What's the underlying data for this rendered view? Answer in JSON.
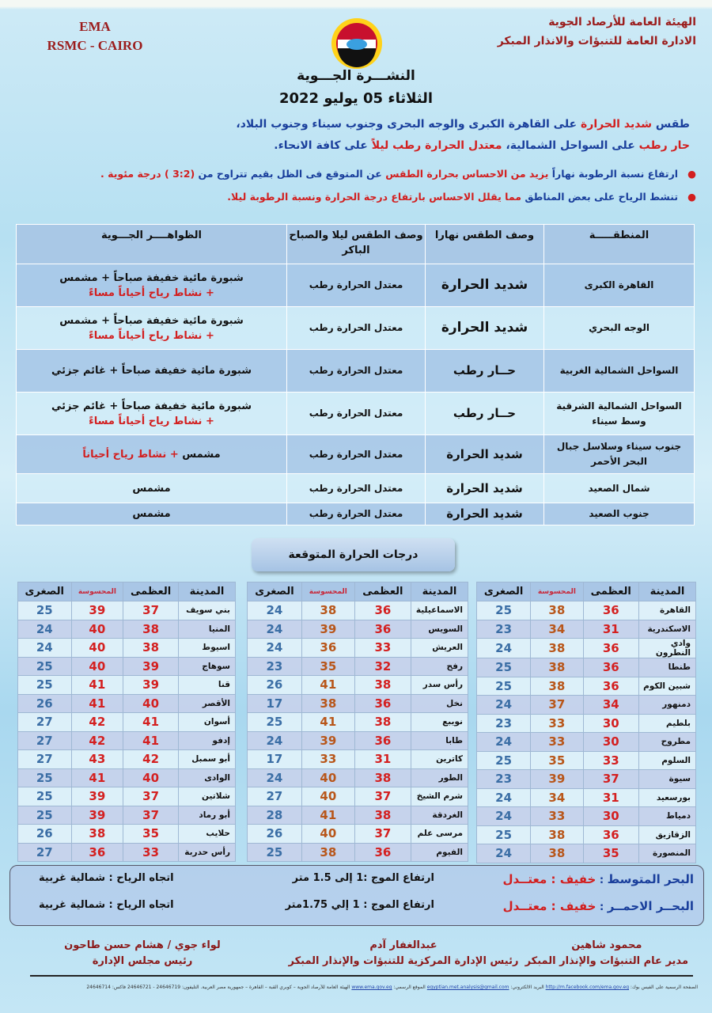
{
  "header": {
    "org_en_1": "EMA",
    "org_en_2": "RSMC - CAIRO",
    "org_ar_1": "الهيئة العامة للأرصاد الجوية",
    "org_ar_2": "الادارة العامة للتنبؤات والانذار المبكر",
    "logo_text": "EMA",
    "title": "النشـــرة الجـــوية",
    "date": "الثلاثاء 05 يوليو 2022"
  },
  "colors": {
    "red": "#d21f1f",
    "blue": "#1a3f9c",
    "maroon": "#8b1a1a",
    "max_temp": "#d42020",
    "felt_temp": "#b8561a",
    "min_temp": "#3b6ea5"
  },
  "summary": [
    [
      {
        "t": "طقس ",
        "c": "blue"
      },
      {
        "t": "شديد الحرارة",
        "c": "red"
      },
      {
        "t": " على القاهرة الكبرى والوجه البحرى وجنوب سيناء وجنوب البلاد،",
        "c": "blue"
      }
    ],
    [
      {
        "t": "حار رطب",
        "c": "red"
      },
      {
        "t": " على السواحل الشمالية، ",
        "c": "blue"
      },
      {
        "t": "معتدل الحرارة رطب ليلاً",
        "c": "red"
      },
      {
        "t": " على كافة الانحاء.",
        "c": "blue"
      }
    ]
  ],
  "bullets": [
    [
      {
        "t": "ارتفاع نسبة الرطوبة نهاراً ",
        "c": "blue"
      },
      {
        "t": "يزيد من الاحساس بحرارة الطقس",
        "c": "red"
      },
      {
        "t": " عن المتوقع فى الظل بقيم تتراوح من ",
        "c": "blue"
      },
      {
        "t": "(3:2 ) درجة مئوية .",
        "c": "red"
      }
    ],
    [
      {
        "t": "تنشط الرياح على بعض المناطق ",
        "c": "blue"
      },
      {
        "t": "مما يقلل الاحساس بارتفاع درجة الحرارة ونسبة الرطوبة ليلا.",
        "c": "red"
      }
    ]
  ],
  "regions": {
    "headers": [
      "المنطقـــــة",
      "وصف الطقس نهارا",
      "وصف الطقس ليلا والصباح الباكر",
      "الظواهــــر الجـــوية"
    ],
    "rows": [
      {
        "region": "القاهرة الكبرى",
        "day": "شديد الحرارة",
        "night": "معتدل الحرارة رطب",
        "phen": [
          {
            "t": "شبورة مائية خفيفة صباحاً + مشمس",
            "c": "blk"
          },
          {
            "t": "+ نشاط رياح أحياناً مساءً",
            "c": "red",
            "br": true
          }
        ]
      },
      {
        "region": "الوجه البحري",
        "day": "شديد الحرارة",
        "night": "معتدل الحرارة رطب",
        "phen": [
          {
            "t": "شبورة مائية خفيفة صباحاً + مشمس",
            "c": "blk"
          },
          {
            "t": "+ نشاط رياح أحياناً مساءً",
            "c": "red",
            "br": true
          }
        ]
      },
      {
        "region": "السواحل الشمالية الغربية",
        "day": "حــار رطب",
        "night": "معتدل الحرارة رطب",
        "phen": [
          {
            "t": "شبورة مائية خفيفة صباحاً + غائم جزئي",
            "c": "blk"
          }
        ]
      },
      {
        "region": "السواحل الشمالية الشرقية وسط سيناء",
        "day": "حــار رطب",
        "night": "معتدل الحرارة رطب",
        "phen": [
          {
            "t": "شبورة مائية خفيفة صباحاً + غائم جزئي",
            "c": "blk"
          },
          {
            "t": "+ نشاط رياح أحياناً مساءً",
            "c": "red",
            "br": true
          }
        ]
      },
      {
        "region": "جنوب سيناء وسلاسل جبال البحر الأحمر",
        "day": "شديد الحرارة",
        "night": "معتدل الحرارة رطب",
        "phen": [
          {
            "t": "مشمس ",
            "c": "blk"
          },
          {
            "t": "+ نشاط رياح أحياناً",
            "c": "red"
          }
        ]
      },
      {
        "region": "شمال الصعيد",
        "day": "شديد الحرارة",
        "night": "معتدل الحرارة رطب",
        "phen": [
          {
            "t": "مشمس",
            "c": "blk"
          }
        ]
      },
      {
        "region": "جنوب الصعيد",
        "day": "شديد الحرارة",
        "night": "معتدل الحرارة رطب",
        "phen": [
          {
            "t": "مشمس",
            "c": "blk"
          }
        ]
      }
    ]
  },
  "temps": {
    "title": "درجات الحرارة المتوقعة",
    "headers": [
      "المدينة",
      "العظمى",
      "المحسوسة",
      "الصغرى"
    ],
    "tables": [
      [
        [
          "القاهرة",
          36,
          38,
          25
        ],
        [
          "الاسكندرية",
          31,
          34,
          23
        ],
        [
          "وادي النطرون",
          36,
          38,
          24
        ],
        [
          "طنطا",
          36,
          38,
          25
        ],
        [
          "شبين الكوم",
          36,
          38,
          25
        ],
        [
          "دمنهور",
          34,
          37,
          24
        ],
        [
          "بلطيم",
          30,
          33,
          23
        ],
        [
          "مطروح",
          30,
          33,
          24
        ],
        [
          "السلوم",
          33,
          35,
          25
        ],
        [
          "سيوة",
          37,
          39,
          23
        ],
        [
          "بورسعيد",
          31,
          34,
          24
        ],
        [
          "دمياط",
          30,
          33,
          24
        ],
        [
          "الزقازيق",
          36,
          38,
          25
        ],
        [
          "المنصورة",
          35,
          38,
          24
        ]
      ],
      [
        [
          "الاسماعيلية",
          36,
          38,
          24
        ],
        [
          "السويس",
          36,
          39,
          24
        ],
        [
          "العريش",
          33,
          36,
          24
        ],
        [
          "رفح",
          32,
          35,
          23
        ],
        [
          "رأس سدر",
          38,
          41,
          26
        ],
        [
          "نخل",
          36,
          38,
          17
        ],
        [
          "نويبع",
          38,
          41,
          25
        ],
        [
          "طابا",
          36,
          39,
          24
        ],
        [
          "كاترين",
          31,
          33,
          17
        ],
        [
          "الطور",
          38,
          40,
          24
        ],
        [
          "شرم الشيخ",
          37,
          40,
          27
        ],
        [
          "الغردقة",
          38,
          41,
          28
        ],
        [
          "مرسى علم",
          37,
          40,
          26
        ],
        [
          "الفيوم",
          36,
          38,
          25
        ]
      ],
      [
        [
          "بني سويف",
          37,
          39,
          25
        ],
        [
          "المنيا",
          38,
          40,
          24
        ],
        [
          "اسيوط",
          38,
          40,
          24
        ],
        [
          "سوهاج",
          39,
          40,
          25
        ],
        [
          "قنا",
          39,
          41,
          25
        ],
        [
          "الأقصر",
          40,
          41,
          26
        ],
        [
          "أسوان",
          41,
          42,
          27
        ],
        [
          "إدفو",
          41,
          42,
          27
        ],
        [
          "أبو سمبل",
          42,
          43,
          27
        ],
        [
          "الوادى",
          40,
          41,
          25
        ],
        [
          "شلاتين",
          37,
          39,
          25
        ],
        [
          "أبو رماد",
          37,
          39,
          25
        ],
        [
          "حلايب",
          35,
          38,
          26
        ],
        [
          "رأس حدربة",
          33,
          36,
          27
        ]
      ]
    ]
  },
  "sea": [
    {
      "name": "البحر المتوسط",
      "sep": " : ",
      "state1": "خفيف",
      "state2": " : معتــدل",
      "wave": "ارتفاع الموج :1 إلى 1.5 متر",
      "wind": "اتجاه الرياح : شمالية غربية"
    },
    {
      "name": "البحــر الاحمــر",
      "sep": " : ",
      "state1": "خفيف",
      "state2": " : معتــدل",
      "wave": "ارتفاع الموج : 1 إلي 1.75متر",
      "wind": "اتجاه الرياح : شمالية غربية"
    }
  ],
  "signatures": [
    {
      "name": "محمود شاهين",
      "role": "مدير عام التنبؤات والإنذار المبكر"
    },
    {
      "name": "عبدالغفار آدم",
      "role": "رئيس الإدارة المركزية للتنبؤات والإنذار المبكر"
    },
    {
      "name": "لواء جوي / هشام حسن طاحون",
      "role": "رئيس مجلس الإدارة"
    }
  ],
  "footer": {
    "fb_label": "الصفحة الرسمية على الفيس بوك:",
    "fb_link": "http://m.facebook.com/ema.gov.eg",
    "email_label": "البريد الالكتروني:",
    "email": "egyptian.met.analysis@gmail.com",
    "site_label": "الموقع الرسمي:",
    "site": "www.ema.gov.eg",
    "address": "الهيئة العامة للأرصاد الجوية – كوبري القبة – القاهرة – جمهورية مصر العربية. التليفون: 24646719 - 24646721 فاكس: 24646714"
  }
}
